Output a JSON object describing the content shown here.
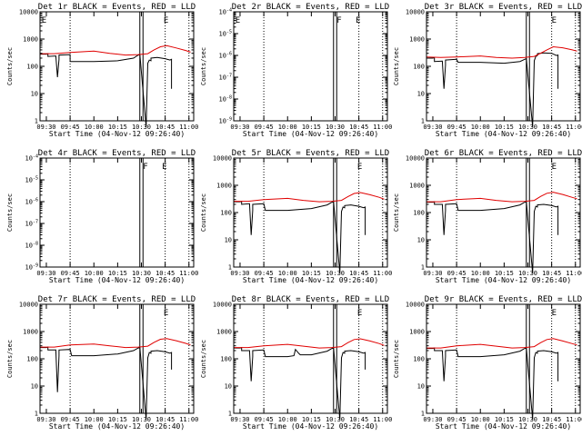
{
  "figure": {
    "background": "#ffffff",
    "events_color": "#000000",
    "lld_color": "#e00000"
  },
  "x_ticks": [
    "09:30",
    "09:45",
    "10:00",
    "10:15",
    "10:30",
    "10:45",
    "11:00"
  ],
  "x_label": "Start Time (04-Nov-12 09:26:40)",
  "y_label": "Counts/sec",
  "dotted_times": [
    "09:45",
    "10:45",
    "11:00"
  ],
  "box_times": [
    "10:29",
    "10:31"
  ],
  "chart_data": [
    {
      "type": "line",
      "title": "Det 1r BLACK = Events, RED = LLD",
      "scale": "log",
      "ylim": [
        1,
        10000
      ],
      "ticks": [
        "1",
        "10",
        "100",
        "1000",
        "10000"
      ],
      "grid": false,
      "flag_glyphs": [
        {
          "x": "09:27",
          "text": "E"
        },
        {
          "x": "10:44",
          "text": "E"
        }
      ],
      "series": [
        {
          "name": "Events",
          "color": "#000000",
          "x": [
            "09:26",
            "09:30",
            "09:31",
            "09:31",
            "09:36",
            "09:37",
            "09:38",
            "09:38",
            "09:45",
            "09:45",
            "10:00",
            "10:15",
            "10:25",
            "10:28",
            "10:29",
            "10:33",
            "10:34",
            "10:35",
            "10:36",
            "10:36",
            "10:40",
            "10:45",
            "10:48",
            "10:49",
            "10:49"
          ],
          "y": [
            280,
            280,
            290,
            230,
            240,
            40,
            180,
            260,
            270,
            150,
            150,
            160,
            200,
            260,
            270,
            0,
            130,
            170,
            160,
            200,
            210,
            190,
            170,
            180,
            15
          ]
        },
        {
          "name": "LLD",
          "color": "#e00000",
          "x": [
            "09:26",
            "09:35",
            "09:45",
            "10:00",
            "10:10",
            "10:20",
            "10:28",
            "10:34",
            "10:38",
            "10:42",
            "10:46",
            "10:52",
            "10:58",
            "11:01"
          ],
          "y": [
            290,
            290,
            320,
            360,
            300,
            260,
            270,
            290,
            400,
            520,
            570,
            470,
            380,
            330
          ]
        }
      ]
    },
    {
      "type": "line",
      "title": "Det 2r BLACK = Events, RED = LLD",
      "scale": "log",
      "ylim": [
        1e-09,
        0.0001
      ],
      "ticks": [
        "10^-9",
        "10^-8",
        "10^-7",
        "10^-6",
        "10^-5",
        "10^-4"
      ],
      "grid": false,
      "flag_glyphs": [
        {
          "x": "09:27",
          "text": "E"
        },
        {
          "x": "10:31",
          "text": "F"
        },
        {
          "x": "10:43",
          "text": "E"
        }
      ],
      "series": []
    },
    {
      "type": "line",
      "title": "Det 3r BLACK = Events, RED = LLD",
      "scale": "log",
      "ylim": [
        1,
        10000
      ],
      "ticks": [
        "1",
        "10",
        "100",
        "1000",
        "10000"
      ],
      "grid": false,
      "flag_glyphs": [
        {
          "x": "10:45",
          "text": "E"
        }
      ],
      "series": [
        {
          "name": "Events",
          "color": "#000000",
          "x": [
            "09:26",
            "09:30",
            "09:31",
            "09:31",
            "09:36",
            "09:37",
            "09:38",
            "09:38",
            "09:45",
            "09:46",
            "10:00",
            "10:15",
            "10:25",
            "10:28",
            "10:29",
            "10:33",
            "10:34",
            "10:35",
            "10:36",
            "10:36",
            "10:40",
            "10:45",
            "10:48",
            "10:49",
            "10:49"
          ],
          "y": [
            200,
            200,
            210,
            150,
            155,
            15,
            110,
            170,
            180,
            140,
            140,
            130,
            150,
            180,
            190,
            0,
            160,
            230,
            250,
            290,
            310,
            300,
            250,
            260,
            15
          ]
        },
        {
          "name": "LLD",
          "color": "#e00000",
          "x": [
            "09:26",
            "09:35",
            "09:45",
            "10:00",
            "10:10",
            "10:20",
            "10:28",
            "10:34",
            "10:38",
            "10:42",
            "10:46",
            "10:52",
            "10:58",
            "11:01"
          ],
          "y": [
            220,
            210,
            220,
            240,
            210,
            200,
            210,
            230,
            300,
            400,
            520,
            480,
            400,
            360
          ]
        }
      ]
    },
    {
      "type": "line",
      "title": "Det 4r BLACK = Events, RED = LLD",
      "scale": "log",
      "ylim": [
        1e-09,
        0.0001
      ],
      "ticks": [
        "10^-9",
        "10^-8",
        "10^-7",
        "10^-6",
        "10^-5",
        "10^-4"
      ],
      "grid": false,
      "flag_glyphs": [
        {
          "x": "10:31",
          "text": "F"
        },
        {
          "x": "10:43",
          "text": "E"
        }
      ],
      "series": []
    },
    {
      "type": "line",
      "title": "Det 5r BLACK = Events, RED = LLD",
      "scale": "log",
      "ylim": [
        1,
        10000
      ],
      "ticks": [
        "1",
        "10",
        "100",
        "1000",
        "10000"
      ],
      "grid": false,
      "flag_glyphs": [
        {
          "x": "10:44",
          "text": "E"
        }
      ],
      "series": [
        {
          "name": "Events",
          "color": "#000000",
          "x": [
            "09:26",
            "09:30",
            "09:31",
            "09:31",
            "09:36",
            "09:37",
            "09:38",
            "09:38",
            "09:45",
            "09:46",
            "10:00",
            "10:15",
            "10:25",
            "10:28",
            "10:29",
            "10:33",
            "10:34",
            "10:35",
            "10:36",
            "10:36",
            "10:40",
            "10:45",
            "10:48",
            "10:49",
            "10:49"
          ],
          "y": [
            250,
            250,
            260,
            200,
            210,
            15,
            120,
            200,
            210,
            120,
            120,
            140,
            190,
            240,
            250,
            0,
            110,
            160,
            150,
            180,
            190,
            170,
            150,
            160,
            15
          ]
        },
        {
          "name": "LLD",
          "color": "#e00000",
          "x": [
            "09:26",
            "09:35",
            "09:45",
            "10:00",
            "10:10",
            "10:20",
            "10:28",
            "10:34",
            "10:38",
            "10:42",
            "10:46",
            "10:52",
            "10:58",
            "11:01"
          ],
          "y": [
            260,
            260,
            300,
            330,
            280,
            250,
            260,
            280,
            380,
            500,
            540,
            450,
            360,
            310
          ]
        }
      ]
    },
    {
      "type": "line",
      "title": "Det 6r BLACK = Events, RED = LLD",
      "scale": "log",
      "ylim": [
        1,
        10000
      ],
      "ticks": [
        "1",
        "10",
        "100",
        "1000",
        "10000"
      ],
      "grid": false,
      "flag_glyphs": [
        {
          "x": "10:45",
          "text": "E"
        }
      ],
      "series": [
        {
          "name": "Events",
          "color": "#000000",
          "x": [
            "09:26",
            "09:30",
            "09:31",
            "09:31",
            "09:36",
            "09:37",
            "09:38",
            "09:38",
            "09:45",
            "09:46",
            "10:00",
            "10:15",
            "10:25",
            "10:28",
            "10:29",
            "10:33",
            "10:34",
            "10:35",
            "10:36",
            "10:36",
            "10:40",
            "10:45",
            "10:48",
            "10:49",
            "10:49"
          ],
          "y": [
            240,
            240,
            250,
            200,
            200,
            15,
            120,
            200,
            210,
            120,
            120,
            140,
            190,
            240,
            250,
            0,
            110,
            170,
            160,
            190,
            200,
            180,
            160,
            170,
            15
          ]
        },
        {
          "name": "LLD",
          "color": "#e00000",
          "x": [
            "09:26",
            "09:35",
            "09:45",
            "10:00",
            "10:10",
            "10:20",
            "10:28",
            "10:34",
            "10:38",
            "10:42",
            "10:46",
            "10:52",
            "10:58",
            "11:01"
          ],
          "y": [
            250,
            250,
            300,
            330,
            280,
            250,
            260,
            280,
            390,
            510,
            560,
            460,
            360,
            320
          ]
        }
      ]
    },
    {
      "type": "line",
      "title": "Det 7r BLACK = Events, RED = LLD",
      "scale": "log",
      "ylim": [
        1,
        10000
      ],
      "ticks": [
        "1",
        "10",
        "100",
        "1000",
        "10000"
      ],
      "grid": false,
      "flag_glyphs": [
        {
          "x": "10:44",
          "text": "E"
        }
      ],
      "series": [
        {
          "name": "Events",
          "color": "#000000",
          "x": [
            "09:26",
            "09:30",
            "09:31",
            "09:31",
            "09:36",
            "09:37",
            "09:38",
            "09:38",
            "09:45",
            "09:46",
            "10:00",
            "10:15",
            "10:25",
            "10:28",
            "10:29",
            "10:33",
            "10:34",
            "10:35",
            "10:36",
            "10:36",
            "10:40",
            "10:45",
            "10:48",
            "10:49",
            "10:49"
          ],
          "y": [
            260,
            260,
            270,
            210,
            210,
            6,
            130,
            210,
            220,
            130,
            130,
            150,
            200,
            250,
            260,
            0,
            110,
            170,
            160,
            190,
            200,
            180,
            160,
            170,
            40
          ]
        },
        {
          "name": "LLD",
          "color": "#e00000",
          "x": [
            "09:26",
            "09:35",
            "09:45",
            "10:00",
            "10:10",
            "10:20",
            "10:28",
            "10:34",
            "10:38",
            "10:42",
            "10:46",
            "10:52",
            "10:58",
            "11:01"
          ],
          "y": [
            270,
            270,
            320,
            350,
            300,
            260,
            270,
            290,
            400,
            520,
            550,
            460,
            370,
            320
          ]
        }
      ]
    },
    {
      "type": "line",
      "title": "Det 8r BLACK = Events, RED = LLD",
      "scale": "log",
      "ylim": [
        1,
        10000
      ],
      "ticks": [
        "1",
        "10",
        "100",
        "1000",
        "10000"
      ],
      "grid": false,
      "flag_glyphs": [
        {
          "x": "10:44",
          "text": "E"
        }
      ],
      "series": [
        {
          "name": "Events",
          "color": "#000000",
          "x": [
            "09:26",
            "09:30",
            "09:31",
            "09:31",
            "09:36",
            "09:37",
            "09:38",
            "09:38",
            "09:45",
            "09:46",
            "10:00",
            "10:04",
            "10:05",
            "10:07",
            "10:08",
            "10:15",
            "10:25",
            "10:28",
            "10:29",
            "10:33",
            "10:34",
            "10:35",
            "10:36",
            "10:36",
            "10:40",
            "10:45",
            "10:48",
            "10:49",
            "10:49"
          ],
          "y": [
            250,
            250,
            260,
            200,
            200,
            15,
            120,
            200,
            210,
            120,
            120,
            130,
            220,
            160,
            140,
            140,
            190,
            240,
            250,
            0,
            110,
            170,
            160,
            190,
            200,
            180,
            160,
            170,
            40
          ]
        },
        {
          "name": "LLD",
          "color": "#e00000",
          "x": [
            "09:26",
            "09:35",
            "09:45",
            "10:00",
            "10:10",
            "10:20",
            "10:28",
            "10:34",
            "10:38",
            "10:42",
            "10:46",
            "10:52",
            "10:58",
            "11:01"
          ],
          "y": [
            260,
            260,
            300,
            340,
            290,
            250,
            260,
            280,
            390,
            510,
            540,
            450,
            360,
            310
          ]
        }
      ]
    },
    {
      "type": "line",
      "title": "Det 9r BLACK = Events, RED = LLD",
      "scale": "log",
      "ylim": [
        1,
        10000
      ],
      "ticks": [
        "1",
        "10",
        "100",
        "1000",
        "10000"
      ],
      "grid": false,
      "flag_glyphs": [
        {
          "x": "10:45",
          "text": "E"
        }
      ],
      "series": [
        {
          "name": "Events",
          "color": "#000000",
          "x": [
            "09:26",
            "09:30",
            "09:31",
            "09:31",
            "09:36",
            "09:37",
            "09:38",
            "09:38",
            "09:45",
            "09:46",
            "10:00",
            "10:15",
            "10:25",
            "10:28",
            "10:29",
            "10:33",
            "10:34",
            "10:35",
            "10:36",
            "10:36",
            "10:40",
            "10:45",
            "10:48",
            "10:49",
            "10:49"
          ],
          "y": [
            240,
            240,
            250,
            200,
            200,
            15,
            120,
            200,
            210,
            120,
            120,
            140,
            190,
            240,
            250,
            0,
            110,
            170,
            160,
            190,
            200,
            180,
            160,
            170,
            15
          ]
        },
        {
          "name": "LLD",
          "color": "#e00000",
          "x": [
            "09:26",
            "09:35",
            "09:45",
            "10:00",
            "10:10",
            "10:20",
            "10:28",
            "10:34",
            "10:38",
            "10:42",
            "10:46",
            "10:52",
            "10:58",
            "11:01"
          ],
          "y": [
            250,
            250,
            300,
            340,
            290,
            250,
            260,
            280,
            390,
            510,
            550,
            450,
            360,
            320
          ]
        }
      ]
    }
  ]
}
